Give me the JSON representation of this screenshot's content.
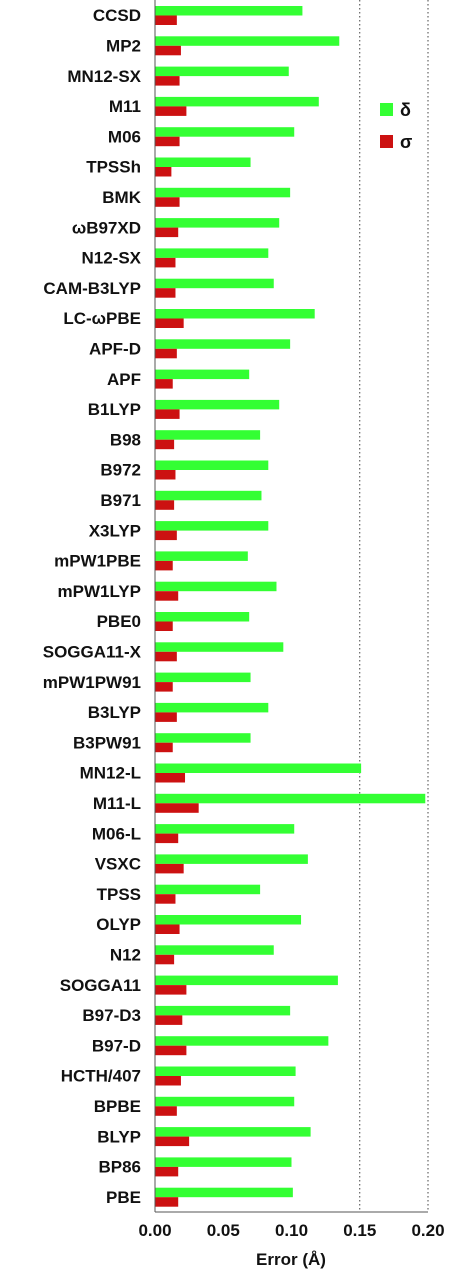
{
  "chart_data": {
    "type": "bar",
    "orientation": "horizontal",
    "categories": [
      "CCSD",
      "MP2",
      "MN12-SX",
      "M11",
      "M06",
      "TPSSh",
      "BMK",
      "ωB97XD",
      "N12-SX",
      "CAM-B3LYP",
      "LC-ωPBE",
      "APF-D",
      "APF",
      "B1LYP",
      "B98",
      "B972",
      "B971",
      "X3LYP",
      "mPW1PBE",
      "mPW1LYP",
      "PBE0",
      "SOGGA11-X",
      "mPW1PW91",
      "B3LYP",
      "B3PW91",
      "MN12-L",
      "M11-L",
      "M06-L",
      "VSXC",
      "TPSS",
      "OLYP",
      "N12",
      "SOGGA11",
      "B97-D3",
      "B97-D",
      "HCTH/407",
      "BPBE",
      "BLYP",
      "BP86",
      "PBE"
    ],
    "series": [
      {
        "name": "δ",
        "color": "#33ff33",
        "values": [
          0.108,
          0.135,
          0.098,
          0.12,
          0.102,
          0.07,
          0.099,
          0.091,
          0.083,
          0.087,
          0.117,
          0.099,
          0.069,
          0.091,
          0.077,
          0.083,
          0.078,
          0.083,
          0.068,
          0.089,
          0.069,
          0.094,
          0.07,
          0.083,
          0.07,
          0.151,
          0.198,
          0.102,
          0.112,
          0.077,
          0.107,
          0.087,
          0.134,
          0.099,
          0.127,
          0.103,
          0.102,
          0.114,
          0.1,
          0.101
        ]
      },
      {
        "name": "σ",
        "color": "#cc1111",
        "values": [
          0.016,
          0.019,
          0.018,
          0.023,
          0.018,
          0.012,
          0.018,
          0.017,
          0.015,
          0.015,
          0.021,
          0.016,
          0.013,
          0.018,
          0.014,
          0.015,
          0.014,
          0.016,
          0.013,
          0.017,
          0.013,
          0.016,
          0.013,
          0.016,
          0.013,
          0.022,
          0.032,
          0.017,
          0.021,
          0.015,
          0.018,
          0.014,
          0.023,
          0.02,
          0.023,
          0.019,
          0.016,
          0.025,
          0.017,
          0.017
        ]
      }
    ],
    "x_ticks": [
      "0.00",
      "0.05",
      "0.10",
      "0.15",
      "0.20"
    ],
    "xlabel": "Error (Å)",
    "xlim": [
      0,
      0.2
    ],
    "grid": "vertical dotted at 0.15 and 0.20",
    "legend_position": "top-right"
  }
}
